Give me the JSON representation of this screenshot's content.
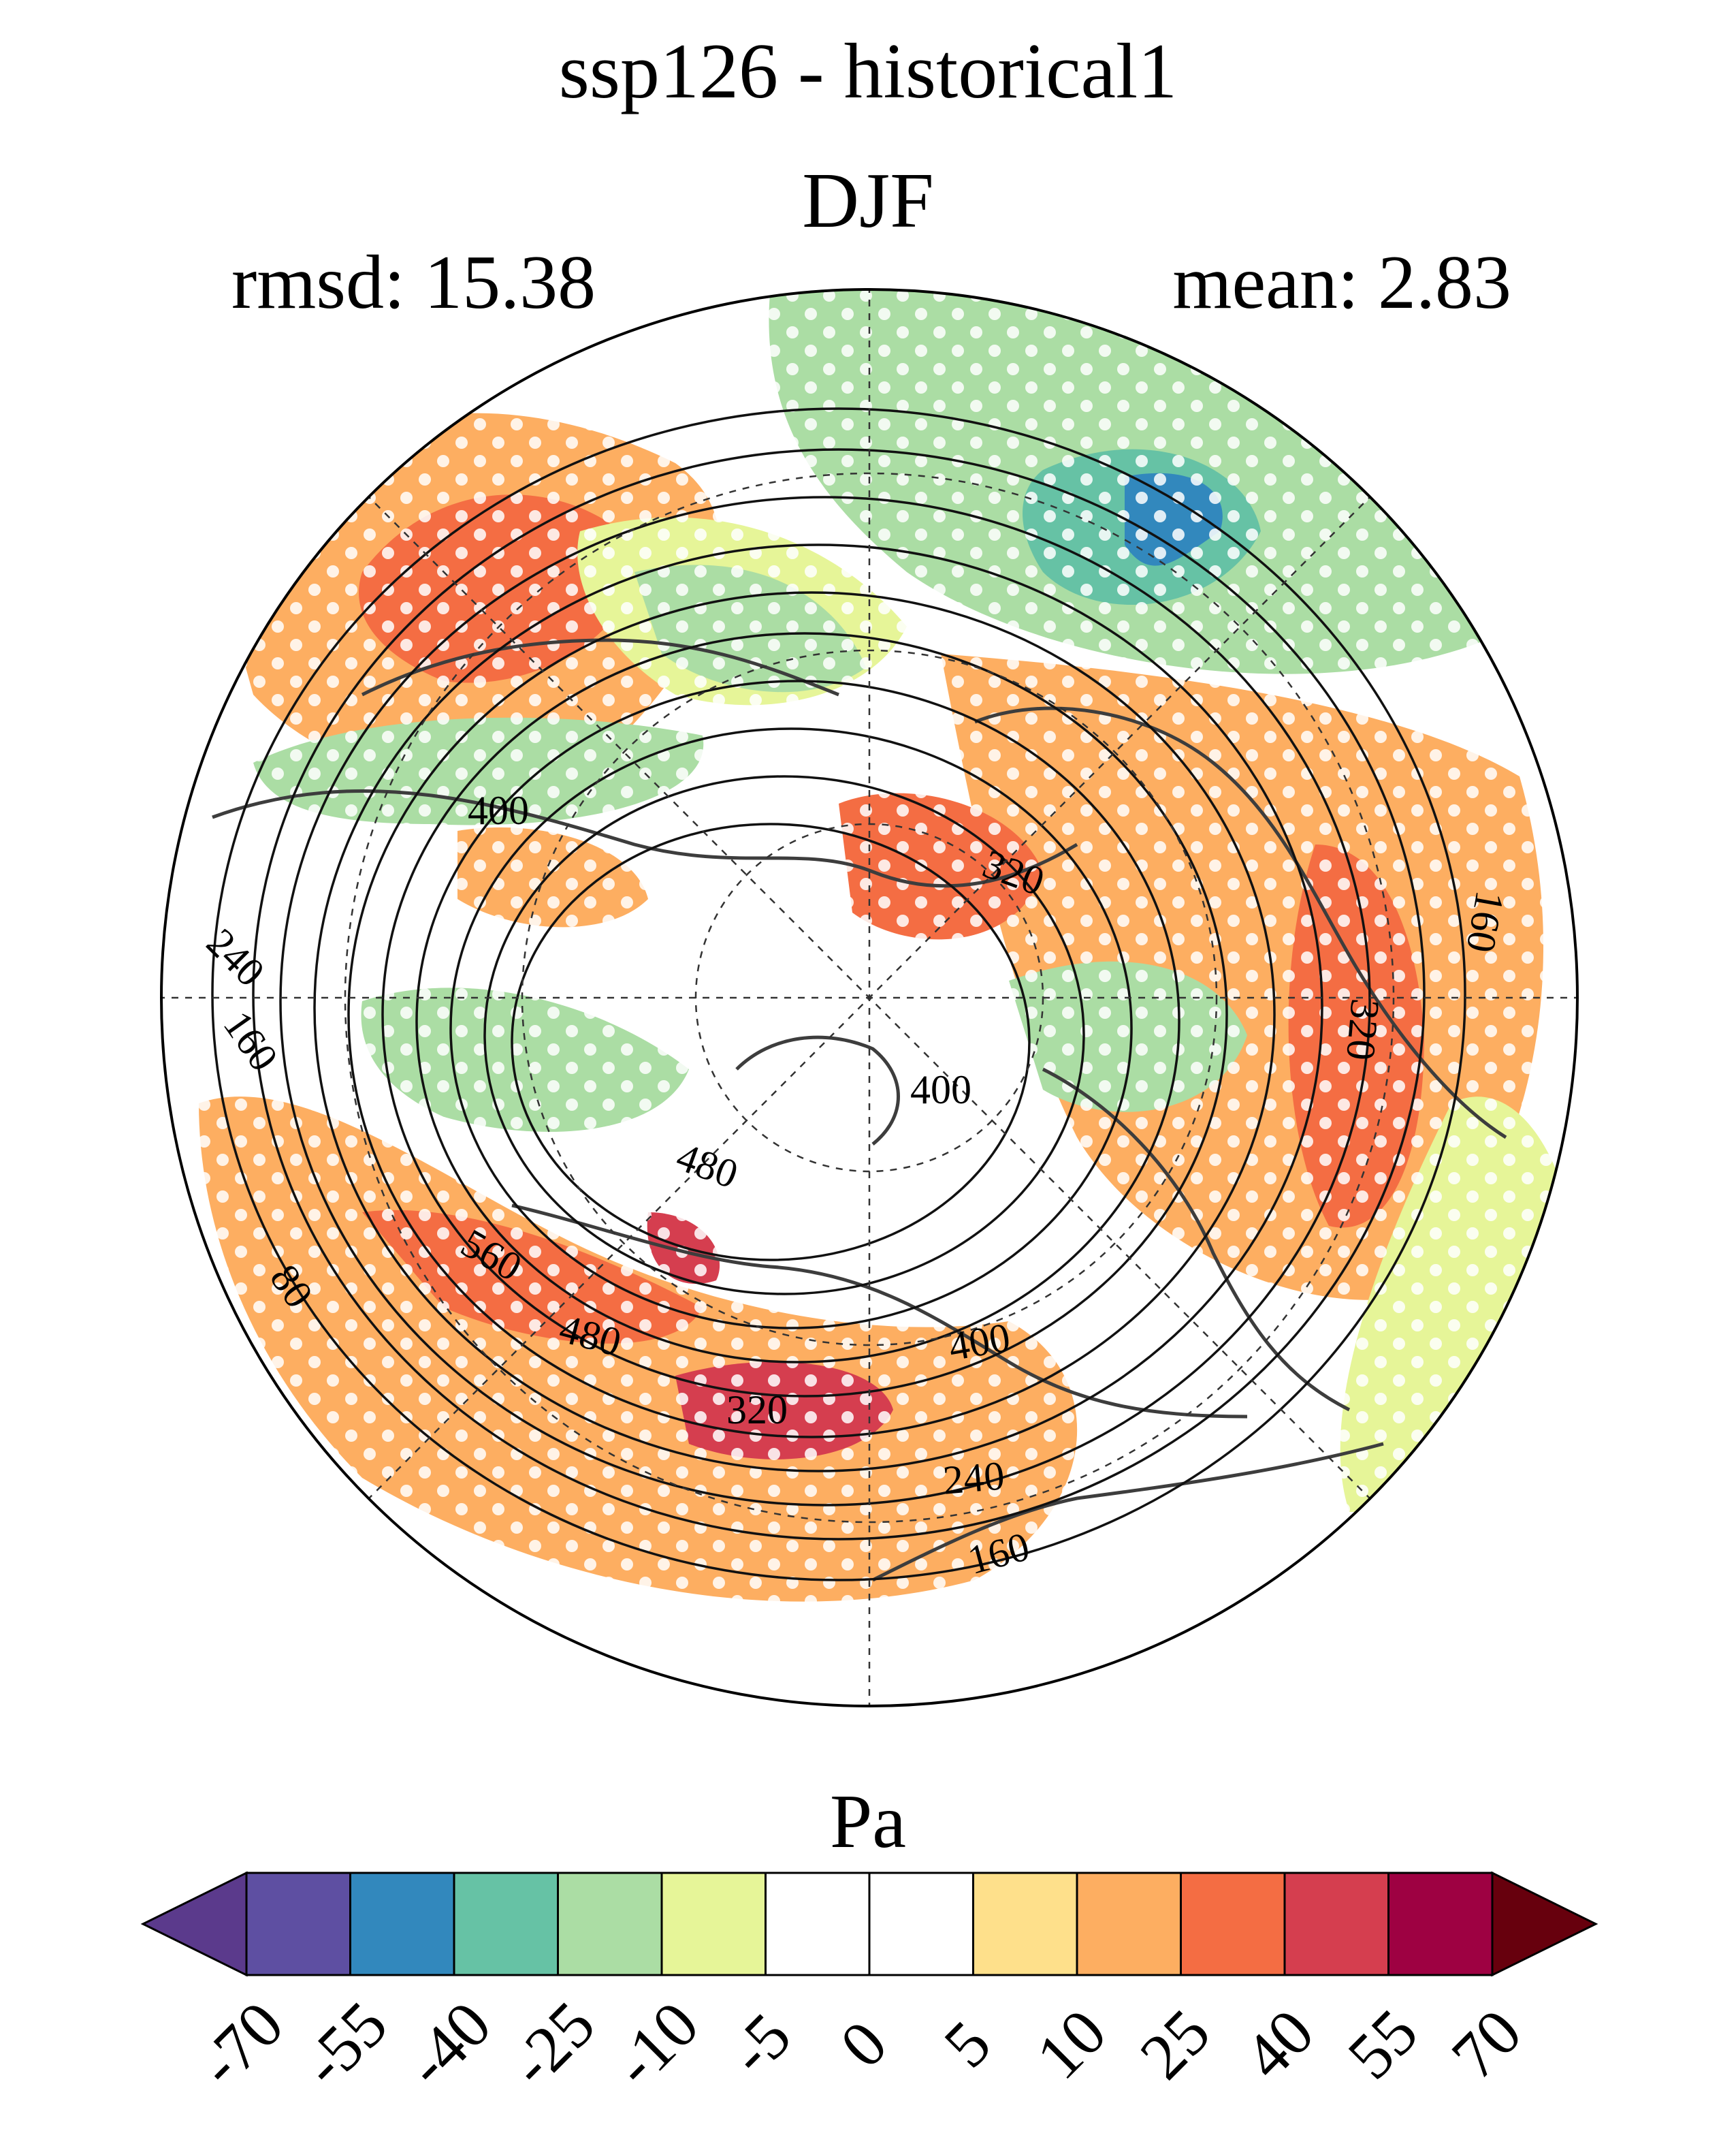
{
  "header": {
    "title": "ssp126 - historical1",
    "season": "DJF",
    "rmsd": "rmsd: 15.38",
    "mean": "mean: 2.83"
  },
  "map": {
    "projection": "north-polar-stereographic",
    "contour_labels": [
      "400",
      "320",
      "240",
      "160",
      "80",
      "560",
      "480",
      "400",
      "320",
      "240",
      "160",
      "480",
      "400",
      "320",
      "160"
    ],
    "anomaly_colors": {
      "red": "#f46d43",
      "orange": "#fdae61",
      "yellow": "#fee08b",
      "lightgreen": "#e6f598",
      "green": "#abdda4",
      "teal": "#66c2a5",
      "blue": "#3288bd",
      "crimson": "#d53e4f"
    }
  },
  "colorbar": {
    "unit": "Pa",
    "tick_labels": [
      "-70",
      "-55",
      "-40",
      "-25",
      "-10",
      "-5",
      "0",
      "5",
      "10",
      "25",
      "40",
      "55",
      "70"
    ],
    "colors": [
      "#5e4fa2",
      "#3288bd",
      "#66c2a5",
      "#abdda4",
      "#e6f598",
      "#ffffff",
      "#ffffff",
      "#fee08b",
      "#fdae61",
      "#f46d43",
      "#d53e4f",
      "#9e0142"
    ],
    "under_color": "#5b3a8c",
    "over_color": "#67000d"
  }
}
